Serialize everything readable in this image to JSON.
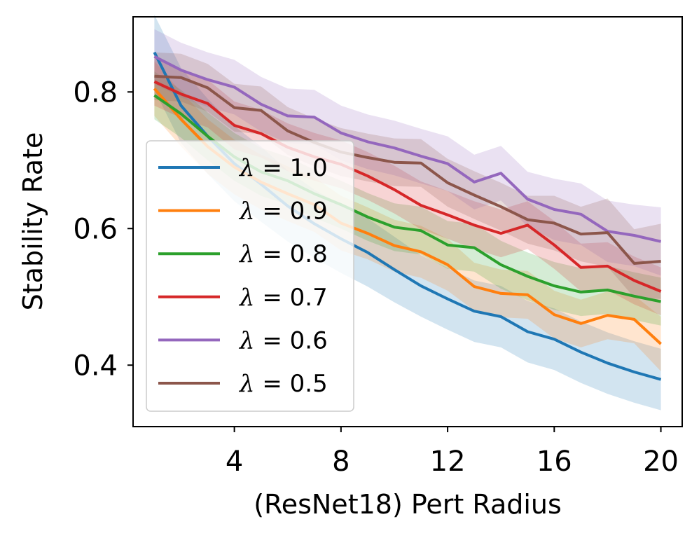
{
  "chart_data": {
    "type": "line",
    "title": "",
    "xlabel": "(ResNet18) Pert Radius",
    "ylabel": "Stability Rate",
    "xlim": [
      0.2,
      20.8
    ],
    "ylim": [
      0.31,
      0.91
    ],
    "xticks": [
      4,
      8,
      12,
      16,
      20
    ],
    "xtick_labels": [
      "4",
      "8",
      "12",
      "16",
      "20"
    ],
    "yticks": [
      0.4,
      0.6,
      0.8
    ],
    "ytick_labels": [
      "0.4",
      "0.6",
      "0.8"
    ],
    "grid": false,
    "legend_position": "lower-left",
    "x": [
      1,
      2,
      3,
      4,
      5,
      6,
      7,
      8,
      9,
      10,
      11,
      12,
      13,
      14,
      15,
      16,
      17,
      18,
      19,
      20
    ],
    "series": [
      {
        "name": "λ = 1.0",
        "legend_lambda": "λ",
        "legend_value": "= 1.0",
        "color": "#1f77b4",
        "values": [
          0.858,
          0.78,
          0.735,
          0.695,
          0.665,
          0.633,
          0.607,
          0.585,
          0.565,
          0.54,
          0.516,
          0.497,
          0.479,
          0.471,
          0.449,
          0.438,
          0.419,
          0.403,
          0.39,
          0.379
        ],
        "band": [
          0.055,
          0.055,
          0.055,
          0.055,
          0.055,
          0.052,
          0.05,
          0.05,
          0.05,
          0.048,
          0.045,
          0.045,
          0.045,
          0.045,
          0.045,
          0.045,
          0.045,
          0.045,
          0.045,
          0.045
        ]
      },
      {
        "name": "λ = 0.9",
        "legend_lambda": "λ",
        "legend_value": "= 0.9",
        "color": "#ff7f0e",
        "values": [
          0.805,
          0.76,
          0.72,
          0.69,
          0.668,
          0.651,
          0.635,
          0.608,
          0.593,
          0.575,
          0.566,
          0.547,
          0.515,
          0.505,
          0.503,
          0.474,
          0.461,
          0.473,
          0.467,
          0.431
        ],
        "band": [
          0.04,
          0.04,
          0.04,
          0.04,
          0.04,
          0.04,
          0.04,
          0.04,
          0.038,
          0.038,
          0.038,
          0.038,
          0.035,
          0.035,
          0.035,
          0.035,
          0.035,
          0.035,
          0.035,
          0.04
        ]
      },
      {
        "name": "λ = 0.8",
        "legend_lambda": "λ",
        "legend_value": "= 0.8",
        "color": "#2ca02c",
        "values": [
          0.795,
          0.768,
          0.735,
          0.705,
          0.683,
          0.67,
          0.651,
          0.635,
          0.617,
          0.602,
          0.597,
          0.576,
          0.572,
          0.547,
          0.53,
          0.516,
          0.507,
          0.51,
          0.501,
          0.493
        ],
        "band": [
          0.035,
          0.035,
          0.035,
          0.035,
          0.035,
          0.035,
          0.035,
          0.035,
          0.035,
          0.035,
          0.035,
          0.035,
          0.035,
          0.035,
          0.035,
          0.035,
          0.035,
          0.035,
          0.035,
          0.035
        ]
      },
      {
        "name": "λ = 0.7",
        "legend_lambda": "λ",
        "legend_value": "= 0.7",
        "color": "#d62728",
        "values": [
          0.815,
          0.797,
          0.783,
          0.751,
          0.739,
          0.719,
          0.705,
          0.694,
          0.677,
          0.657,
          0.634,
          0.62,
          0.605,
          0.593,
          0.605,
          0.576,
          0.543,
          0.545,
          0.524,
          0.508
        ],
        "band": [
          0.035,
          0.035,
          0.035,
          0.035,
          0.035,
          0.035,
          0.035,
          0.035,
          0.035,
          0.035,
          0.035,
          0.035,
          0.035,
          0.035,
          0.035,
          0.035,
          0.035,
          0.035,
          0.035,
          0.035
        ]
      },
      {
        "name": "λ = 0.6",
        "legend_lambda": "λ",
        "legend_value": "= 0.6",
        "color": "#9467bd",
        "values": [
          0.852,
          0.832,
          0.818,
          0.807,
          0.782,
          0.765,
          0.763,
          0.74,
          0.727,
          0.718,
          0.706,
          0.695,
          0.668,
          0.681,
          0.643,
          0.628,
          0.621,
          0.596,
          0.59,
          0.581
        ],
        "band": [
          0.04,
          0.04,
          0.04,
          0.04,
          0.04,
          0.04,
          0.04,
          0.04,
          0.04,
          0.04,
          0.04,
          0.04,
          0.04,
          0.04,
          0.04,
          0.045,
          0.045,
          0.045,
          0.045,
          0.05
        ]
      },
      {
        "name": "λ = 0.5",
        "legend_lambda": "λ",
        "legend_value": "= 0.5",
        "color": "#8c564b",
        "values": [
          0.823,
          0.821,
          0.806,
          0.777,
          0.773,
          0.743,
          0.726,
          0.712,
          0.704,
          0.697,
          0.696,
          0.667,
          0.649,
          0.632,
          0.613,
          0.608,
          0.592,
          0.594,
          0.549,
          0.552
        ],
        "band": [
          0.035,
          0.035,
          0.035,
          0.035,
          0.035,
          0.035,
          0.035,
          0.035,
          0.035,
          0.035,
          0.035,
          0.035,
          0.035,
          0.035,
          0.035,
          0.04,
          0.04,
          0.05,
          0.05,
          0.055
        ]
      }
    ]
  }
}
